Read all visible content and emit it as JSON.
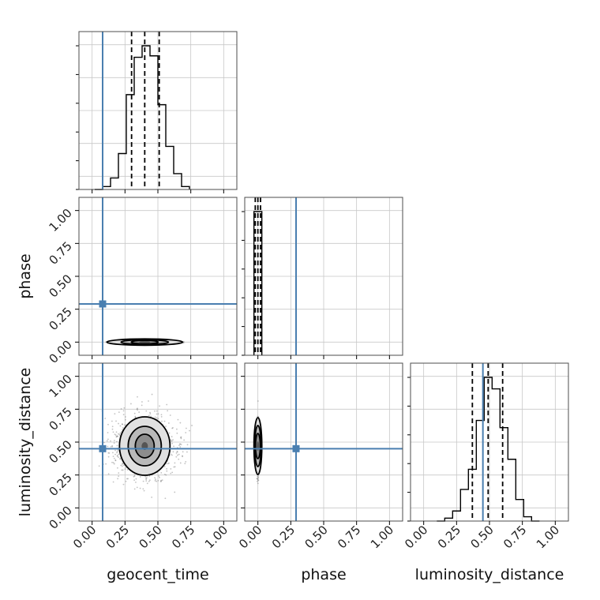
{
  "chart_data": {
    "type": "corner",
    "parameters": [
      "geocent_time",
      "phase",
      "luminosity_distance"
    ],
    "ticks": [
      "0.00",
      "0.25",
      "0.50",
      "0.75",
      "1.00"
    ],
    "range": [
      -0.1,
      1.1
    ],
    "truths": {
      "geocent_time": 0.08,
      "phase": 0.29,
      "luminosity_distance": 0.45
    },
    "histograms": {
      "geocent_time": {
        "bin_edges": [
          0.02,
          0.08,
          0.14,
          0.2,
          0.26,
          0.32,
          0.38,
          0.44,
          0.5,
          0.56,
          0.62,
          0.68,
          0.74
        ],
        "counts": [
          0,
          2,
          8,
          25,
          66,
          92,
          100,
          93,
          59,
          30,
          11,
          2
        ],
        "quantiles": [
          0.3,
          0.4,
          0.51
        ]
      },
      "phase": {
        "bin_edges": [
          -0.03,
          0.0,
          0.03
        ],
        "counts": [
          100,
          100
        ],
        "quantiles": [
          -0.02,
          0.0,
          0.02
        ]
      },
      "luminosity_distance": {
        "bin_edges": [
          0.1,
          0.16,
          0.22,
          0.28,
          0.34,
          0.4,
          0.46,
          0.52,
          0.58,
          0.64,
          0.7,
          0.76,
          0.82,
          0.88
        ],
        "counts": [
          0,
          2,
          7,
          22,
          36,
          70,
          100,
          92,
          65,
          43,
          15,
          3,
          0
        ],
        "quantiles": [
          0.37,
          0.49,
          0.6
        ]
      }
    },
    "joint": {
      "phase_vs_geocent_time": {
        "center": [
          0.4,
          0.0
        ]
      },
      "luminosity_distance_vs_geocent_time": {
        "center": [
          0.4,
          0.47
        ]
      },
      "luminosity_distance_vs_phase": {
        "center": [
          0.0,
          0.47
        ]
      }
    },
    "title": "",
    "grid": true
  }
}
